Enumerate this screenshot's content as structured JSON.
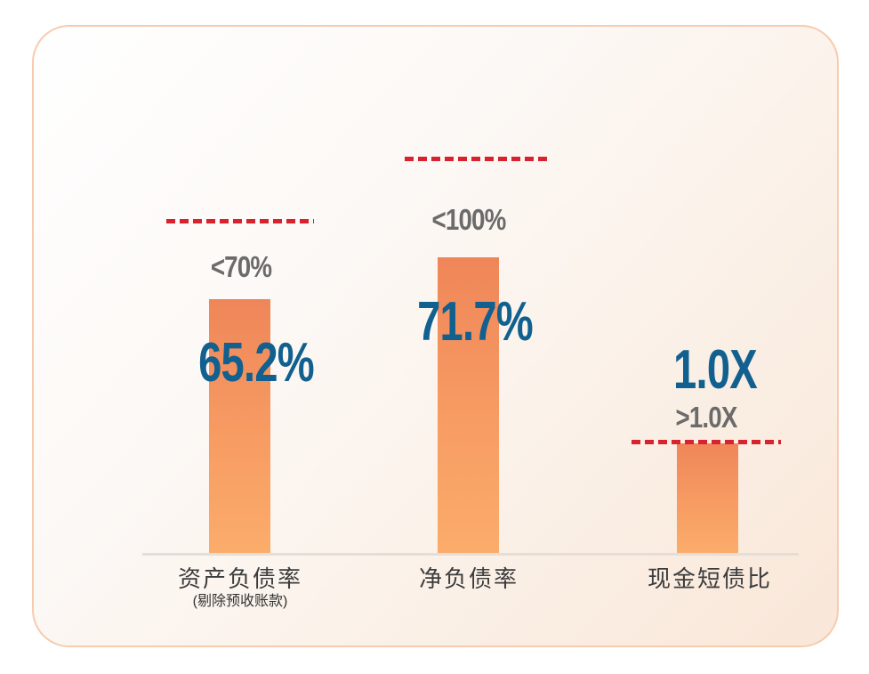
{
  "colors": {
    "card_border": "#F7CBAE",
    "card_bg_start": "#FFFFFF",
    "card_bg_end": "#F9E7D8",
    "bar_gradient_top": "#EF8659",
    "bar_gradient_bottom": "#FBAC6B",
    "threshold_line": "#D8232E",
    "value_text": "#11608F",
    "threshold_text": "#6B6B6B",
    "category_text": "#3C3C3C",
    "axis_line": "#E5DED6"
  },
  "chart_data": {
    "type": "bar",
    "title": "",
    "categories": [
      "资产负债率 (剔除预收账款)",
      "净负债率",
      "现金短债比"
    ],
    "values": [
      65.2,
      71.7,
      1.0
    ],
    "value_labels": [
      "65.2%",
      "71.7%",
      "1.0X"
    ],
    "threshold_labels": [
      "<70%",
      "<100%",
      ">1.0X"
    ],
    "threshold_line_style": "red-dashed",
    "legend_position": "none",
    "grid": false,
    "groups": [
      {
        "category": "资产负债率",
        "category_note": "(剔除预收账款)",
        "value": 65.2,
        "value_label": "65.2%",
        "threshold_label": "<70%"
      },
      {
        "category": "净负债率",
        "category_note": "",
        "value": 71.7,
        "value_label": "71.7%",
        "threshold_label": "<100%"
      },
      {
        "category": "现金短债比",
        "category_note": "",
        "value": 1.0,
        "value_label": "1.0X",
        "threshold_label": ">1.0X"
      }
    ]
  }
}
